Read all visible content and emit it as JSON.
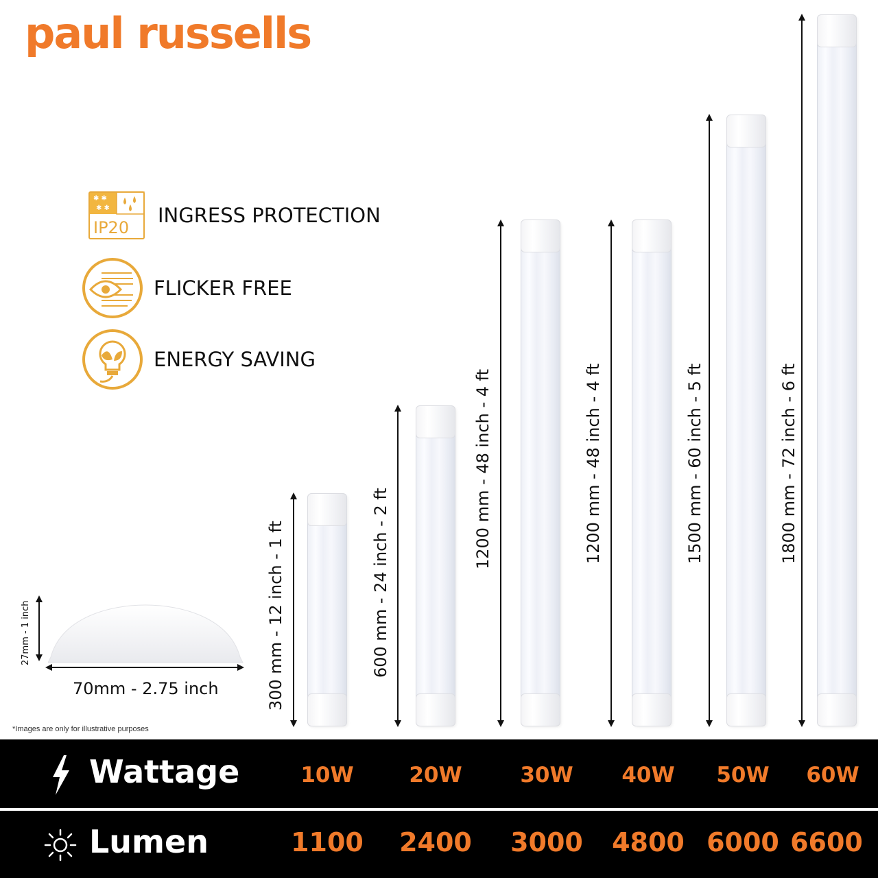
{
  "brand": {
    "name": "paul russells",
    "color": "#f07a2a"
  },
  "features": [
    {
      "icon": "ip20-icon",
      "badge": "IP20",
      "label": "INGRESS PROTECTION"
    },
    {
      "icon": "flicker-free-icon",
      "label": "FLICKER FREE"
    },
    {
      "icon": "energy-saving-icon",
      "label": "ENERGY SAVING"
    }
  ],
  "tubes": [
    {
      "size": "300 mm - 12 inch - 1 ft"
    },
    {
      "size": "600 mm - 24 inch - 2 ft"
    },
    {
      "size": "1200 mm - 48 inch - 4 ft"
    },
    {
      "size": "1200 mm - 48 inch - 4 ft"
    },
    {
      "size": "1500 mm - 60 inch - 5 ft"
    },
    {
      "size": "1800 mm - 72 inch - 6 ft"
    }
  ],
  "profile": {
    "width_label": "70mm - 2.75 inch",
    "height_label": "27mm - 1 inch"
  },
  "disclaimer": "*Images are only for illustrative purposes",
  "specs": {
    "wattage": {
      "label": "Wattage",
      "icon": "lightning-icon",
      "values": [
        "10W",
        "20W",
        "30W",
        "40W",
        "50W",
        "60W"
      ]
    },
    "lumen": {
      "label": "Lumen",
      "icon": "sun-icon",
      "values": [
        "1100",
        "2400",
        "3000",
        "4800",
        "6000",
        "6600"
      ]
    }
  },
  "colors": {
    "accent": "#f07a2a",
    "gold": "#e8a93a",
    "bar": "#000000"
  }
}
